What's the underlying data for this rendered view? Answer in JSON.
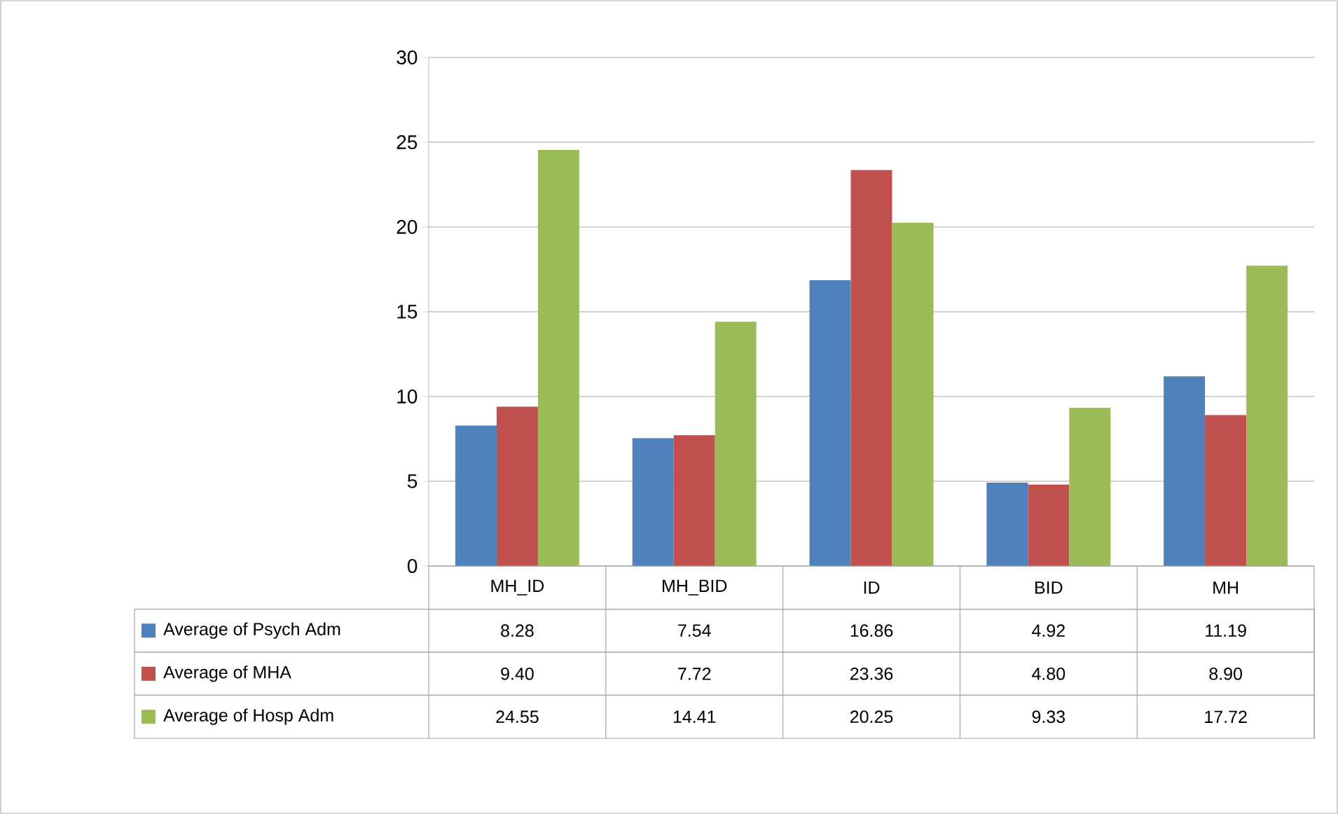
{
  "chart_data": {
    "type": "bar",
    "categories": [
      "MH_ID",
      "MH_BID",
      "ID",
      "BID",
      "MH"
    ],
    "series": [
      {
        "name": "Average of Psych Adm",
        "color": "#4f81bd",
        "values": [
          8.28,
          7.54,
          16.86,
          4.92,
          11.19
        ],
        "value_labels": [
          "8.28",
          "7.54",
          "16.86",
          "4.92",
          "11.19"
        ]
      },
      {
        "name": "Average of MHA",
        "color": "#c0504d",
        "values": [
          9.4,
          7.72,
          23.36,
          4.8,
          8.9
        ],
        "value_labels": [
          "9.40",
          "7.72",
          "23.36",
          "4.80",
          "8.90"
        ]
      },
      {
        "name": "Average of Hosp Adm",
        "color": "#9bbb59",
        "values": [
          24.55,
          14.41,
          20.25,
          9.33,
          17.72
        ],
        "value_labels": [
          "24.55",
          "14.41",
          "20.25",
          "9.33",
          "17.72"
        ]
      }
    ],
    "ylim": [
      0,
      30
    ],
    "yticks": [
      0,
      5,
      10,
      15,
      20,
      25,
      30
    ],
    "grid": "y",
    "legend": "bottom"
  }
}
